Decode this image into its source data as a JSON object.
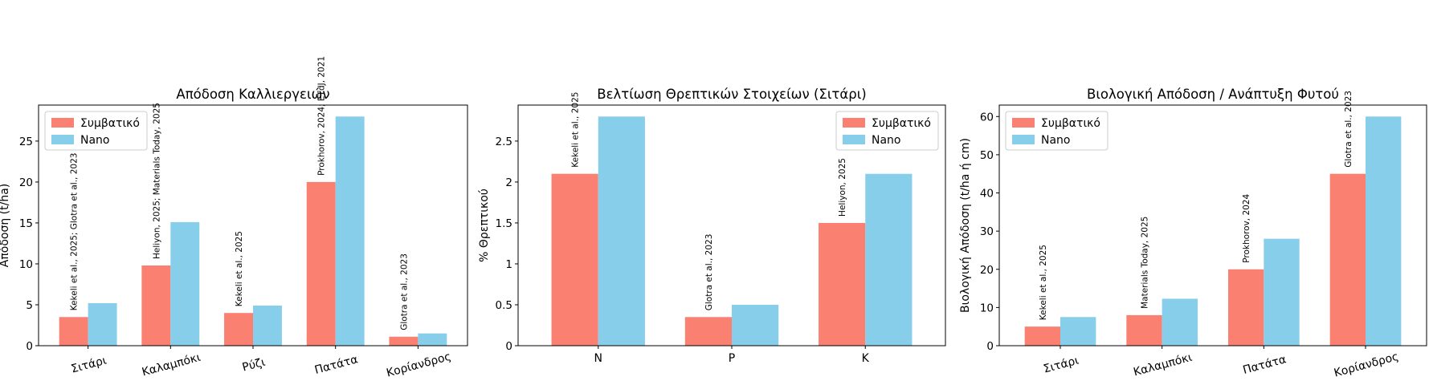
{
  "colors": {
    "conventional": "#fa8072",
    "nano": "#87ceeb"
  },
  "chart_data": [
    {
      "type": "bar",
      "title": "Απόδοση Καλλιεργειών",
      "xlabel": "",
      "ylabel": "Απόδοση (t/ha)",
      "categories": [
        "Σιτάρι",
        "Καλαμπόκι",
        "Ρύζι",
        "Πατάτα",
        "Κορίανδρος"
      ],
      "series": [
        {
          "name": "Συμβατικό",
          "values": [
            3.5,
            9.8,
            4.0,
            20.0,
            1.1
          ]
        },
        {
          "name": "Nano",
          "values": [
            5.2,
            15.1,
            4.9,
            28.0,
            1.5
          ]
        }
      ],
      "ylim": [
        0,
        29.4
      ],
      "yticks": [
        0,
        5,
        10,
        15,
        20,
        25
      ],
      "annotations": [
        "Kekeli et al., 2025; Glotra et al., 2023",
        "Heliyon, 2025; Materials Today, 2025",
        "Kekeli et al., 2025",
        "Prokhorov, 2024; ETdJ, 2021",
        "Glotra et al., 2023"
      ],
      "legend": "top-left",
      "grid": false
    },
    {
      "type": "bar",
      "title": "Βελτίωση Θρεπτικών Στοιχείων (Σιτάρι)",
      "xlabel": "",
      "ylabel": "% Θρεπτικού",
      "categories": [
        "N",
        "P",
        "K"
      ],
      "series": [
        {
          "name": "Συμβατικό",
          "values": [
            2.1,
            0.35,
            1.5
          ]
        },
        {
          "name": "Nano",
          "values": [
            2.8,
            0.5,
            2.1
          ]
        }
      ],
      "ylim": [
        0,
        2.94
      ],
      "yticks": [
        0.0,
        0.5,
        1.0,
        1.5,
        2.0,
        2.5
      ],
      "annotations": [
        "Kekeli et al., 2025",
        "Glotra et al., 2023",
        "Heliyon, 2025"
      ],
      "legend": "top-right",
      "grid": false
    },
    {
      "type": "bar",
      "title": "Βιολογική Απόδοση / Ανάπτυξη Φυτού",
      "xlabel": "",
      "ylabel": "Βιολογική Απόδοση (t/ha ή cm)",
      "categories": [
        "Σιτάρι",
        "Καλαμπόκι",
        "Πατάτα",
        "Κορίανδρος"
      ],
      "series": [
        {
          "name": "Συμβατικό",
          "values": [
            5.0,
            8.0,
            20.0,
            45.0
          ]
        },
        {
          "name": "Nano",
          "values": [
            7.5,
            12.3,
            28.0,
            60.0
          ]
        }
      ],
      "ylim": [
        0,
        63
      ],
      "yticks": [
        0,
        10,
        20,
        30,
        40,
        50,
        60
      ],
      "annotations": [
        "Kekeli et al., 2025",
        "Materials Today, 2025",
        "Prokhorov, 2024",
        "Glotra et al., 2023"
      ],
      "legend": "top-left",
      "grid": false
    }
  ]
}
